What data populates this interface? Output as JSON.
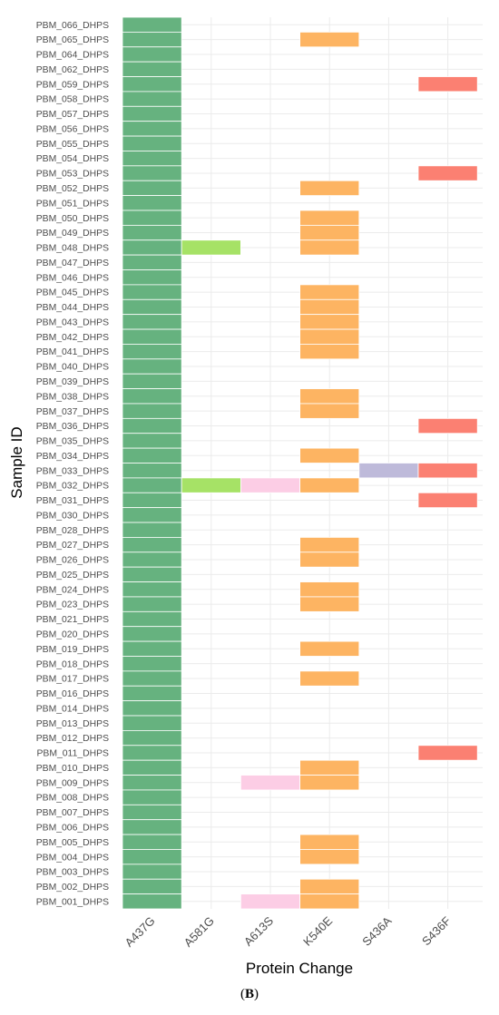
{
  "caption": {
    "open": "(",
    "label": "B",
    "close": ")"
  },
  "chart_data": {
    "type": "heatmap",
    "title": "",
    "xlabel": "Protein Change",
    "ylabel": "Sample ID",
    "x_categories": [
      "A437G",
      "A581G",
      "A613S",
      "K540E",
      "S436A",
      "S436F"
    ],
    "y_categories": [
      "PBM_066_DHPS",
      "PBM_065_DHPS",
      "PBM_064_DHPS",
      "PBM_062_DHPS",
      "PBM_059_DHPS",
      "PBM_058_DHPS",
      "PBM_057_DHPS",
      "PBM_056_DHPS",
      "PBM_055_DHPS",
      "PBM_054_DHPS",
      "PBM_053_DHPS",
      "PBM_052_DHPS",
      "PBM_051_DHPS",
      "PBM_050_DHPS",
      "PBM_049_DHPS",
      "PBM_048_DHPS",
      "PBM_047_DHPS",
      "PBM_046_DHPS",
      "PBM_045_DHPS",
      "PBM_044_DHPS",
      "PBM_043_DHPS",
      "PBM_042_DHPS",
      "PBM_041_DHPS",
      "PBM_040_DHPS",
      "PBM_039_DHPS",
      "PBM_038_DHPS",
      "PBM_037_DHPS",
      "PBM_036_DHPS",
      "PBM_035_DHPS",
      "PBM_034_DHPS",
      "PBM_033_DHPS",
      "PBM_032_DHPS",
      "PBM_031_DHPS",
      "PBM_030_DHPS",
      "PBM_028_DHPS",
      "PBM_027_DHPS",
      "PBM_026_DHPS",
      "PBM_025_DHPS",
      "PBM_024_DHPS",
      "PBM_023_DHPS",
      "PBM_021_DHPS",
      "PBM_020_DHPS",
      "PBM_019_DHPS",
      "PBM_018_DHPS",
      "PBM_017_DHPS",
      "PBM_016_DHPS",
      "PBM_014_DHPS",
      "PBM_013_DHPS",
      "PBM_012_DHPS",
      "PBM_011_DHPS",
      "PBM_010_DHPS",
      "PBM_009_DHPS",
      "PBM_008_DHPS",
      "PBM_007_DHPS",
      "PBM_006_DHPS",
      "PBM_005_DHPS",
      "PBM_004_DHPS",
      "PBM_003_DHPS",
      "PBM_002_DHPS",
      "PBM_001_DHPS"
    ],
    "colors": {
      "A437G": "#66b27f",
      "A581G": "#a6e266",
      "A613S": "#fccde5",
      "K540E": "#fdb462",
      "S436A": "#bebada",
      "S436F": "#fb8072"
    },
    "cells": [
      [
        "PBM_066_DHPS",
        "A437G"
      ],
      [
        "PBM_065_DHPS",
        "A437G"
      ],
      [
        "PBM_064_DHPS",
        "A437G"
      ],
      [
        "PBM_062_DHPS",
        "A437G"
      ],
      [
        "PBM_059_DHPS",
        "A437G"
      ],
      [
        "PBM_058_DHPS",
        "A437G"
      ],
      [
        "PBM_057_DHPS",
        "A437G"
      ],
      [
        "PBM_056_DHPS",
        "A437G"
      ],
      [
        "PBM_055_DHPS",
        "A437G"
      ],
      [
        "PBM_054_DHPS",
        "A437G"
      ],
      [
        "PBM_053_DHPS",
        "A437G"
      ],
      [
        "PBM_052_DHPS",
        "A437G"
      ],
      [
        "PBM_051_DHPS",
        "A437G"
      ],
      [
        "PBM_050_DHPS",
        "A437G"
      ],
      [
        "PBM_049_DHPS",
        "A437G"
      ],
      [
        "PBM_048_DHPS",
        "A437G"
      ],
      [
        "PBM_047_DHPS",
        "A437G"
      ],
      [
        "PBM_046_DHPS",
        "A437G"
      ],
      [
        "PBM_045_DHPS",
        "A437G"
      ],
      [
        "PBM_044_DHPS",
        "A437G"
      ],
      [
        "PBM_043_DHPS",
        "A437G"
      ],
      [
        "PBM_042_DHPS",
        "A437G"
      ],
      [
        "PBM_041_DHPS",
        "A437G"
      ],
      [
        "PBM_040_DHPS",
        "A437G"
      ],
      [
        "PBM_039_DHPS",
        "A437G"
      ],
      [
        "PBM_038_DHPS",
        "A437G"
      ],
      [
        "PBM_037_DHPS",
        "A437G"
      ],
      [
        "PBM_036_DHPS",
        "A437G"
      ],
      [
        "PBM_035_DHPS",
        "A437G"
      ],
      [
        "PBM_034_DHPS",
        "A437G"
      ],
      [
        "PBM_033_DHPS",
        "A437G"
      ],
      [
        "PBM_032_DHPS",
        "A437G"
      ],
      [
        "PBM_031_DHPS",
        "A437G"
      ],
      [
        "PBM_030_DHPS",
        "A437G"
      ],
      [
        "PBM_028_DHPS",
        "A437G"
      ],
      [
        "PBM_027_DHPS",
        "A437G"
      ],
      [
        "PBM_026_DHPS",
        "A437G"
      ],
      [
        "PBM_025_DHPS",
        "A437G"
      ],
      [
        "PBM_024_DHPS",
        "A437G"
      ],
      [
        "PBM_023_DHPS",
        "A437G"
      ],
      [
        "PBM_021_DHPS",
        "A437G"
      ],
      [
        "PBM_020_DHPS",
        "A437G"
      ],
      [
        "PBM_019_DHPS",
        "A437G"
      ],
      [
        "PBM_018_DHPS",
        "A437G"
      ],
      [
        "PBM_017_DHPS",
        "A437G"
      ],
      [
        "PBM_016_DHPS",
        "A437G"
      ],
      [
        "PBM_014_DHPS",
        "A437G"
      ],
      [
        "PBM_013_DHPS",
        "A437G"
      ],
      [
        "PBM_012_DHPS",
        "A437G"
      ],
      [
        "PBM_011_DHPS",
        "A437G"
      ],
      [
        "PBM_010_DHPS",
        "A437G"
      ],
      [
        "PBM_009_DHPS",
        "A437G"
      ],
      [
        "PBM_008_DHPS",
        "A437G"
      ],
      [
        "PBM_007_DHPS",
        "A437G"
      ],
      [
        "PBM_006_DHPS",
        "A437G"
      ],
      [
        "PBM_005_DHPS",
        "A437G"
      ],
      [
        "PBM_004_DHPS",
        "A437G"
      ],
      [
        "PBM_003_DHPS",
        "A437G"
      ],
      [
        "PBM_002_DHPS",
        "A437G"
      ],
      [
        "PBM_001_DHPS",
        "A437G"
      ],
      [
        "PBM_048_DHPS",
        "A581G"
      ],
      [
        "PBM_032_DHPS",
        "A581G"
      ],
      [
        "PBM_032_DHPS",
        "A613S"
      ],
      [
        "PBM_009_DHPS",
        "A613S"
      ],
      [
        "PBM_001_DHPS",
        "A613S"
      ],
      [
        "PBM_065_DHPS",
        "K540E"
      ],
      [
        "PBM_052_DHPS",
        "K540E"
      ],
      [
        "PBM_050_DHPS",
        "K540E"
      ],
      [
        "PBM_049_DHPS",
        "K540E"
      ],
      [
        "PBM_048_DHPS",
        "K540E"
      ],
      [
        "PBM_045_DHPS",
        "K540E"
      ],
      [
        "PBM_044_DHPS",
        "K540E"
      ],
      [
        "PBM_043_DHPS",
        "K540E"
      ],
      [
        "PBM_042_DHPS",
        "K540E"
      ],
      [
        "PBM_041_DHPS",
        "K540E"
      ],
      [
        "PBM_038_DHPS",
        "K540E"
      ],
      [
        "PBM_037_DHPS",
        "K540E"
      ],
      [
        "PBM_034_DHPS",
        "K540E"
      ],
      [
        "PBM_032_DHPS",
        "K540E"
      ],
      [
        "PBM_027_DHPS",
        "K540E"
      ],
      [
        "PBM_026_DHPS",
        "K540E"
      ],
      [
        "PBM_024_DHPS",
        "K540E"
      ],
      [
        "PBM_023_DHPS",
        "K540E"
      ],
      [
        "PBM_019_DHPS",
        "K540E"
      ],
      [
        "PBM_017_DHPS",
        "K540E"
      ],
      [
        "PBM_010_DHPS",
        "K540E"
      ],
      [
        "PBM_009_DHPS",
        "K540E"
      ],
      [
        "PBM_005_DHPS",
        "K540E"
      ],
      [
        "PBM_004_DHPS",
        "K540E"
      ],
      [
        "PBM_002_DHPS",
        "K540E"
      ],
      [
        "PBM_001_DHPS",
        "K540E"
      ],
      [
        "PBM_033_DHPS",
        "S436A"
      ],
      [
        "PBM_059_DHPS",
        "S436F"
      ],
      [
        "PBM_053_DHPS",
        "S436F"
      ],
      [
        "PBM_036_DHPS",
        "S436F"
      ],
      [
        "PBM_033_DHPS",
        "S436F"
      ],
      [
        "PBM_031_DHPS",
        "S436F"
      ],
      [
        "PBM_011_DHPS",
        "S436F"
      ]
    ],
    "grid": true,
    "legend": "none"
  }
}
